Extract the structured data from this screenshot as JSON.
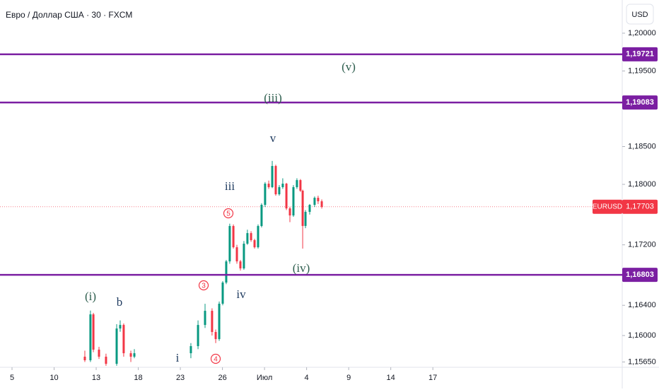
{
  "header": {
    "title": "Евро / Доллар США · 30 · FXCM",
    "currency": "USD"
  },
  "chart_data": {
    "type": "candlestick",
    "x": [
      5.19,
      5.59,
      5.8,
      6.2,
      6.7,
      7.46,
      7.71,
      7.96,
      8.47,
      8.72,
      12.75,
      13.26,
      13.76,
      14.26,
      14.52,
      14.77,
      15.02,
      15.27,
      15.52,
      15.78,
      16.03,
      16.28,
      16.53,
      16.78,
      17.04,
      17.29,
      17.54,
      17.79,
      18.04,
      18.3,
      18.55,
      18.8,
      19.05,
      19.3,
      19.56,
      19.81,
      20.06,
      20.31,
      20.56,
      20.72,
      20.92,
      21.22,
      21.57,
      21.82,
      22.08
    ],
    "open": [
      1.1572,
      1.15673,
      1.1628,
      1.15813,
      1.1572,
      1.15626,
      1.16093,
      1.1614,
      1.15766,
      1.1572,
      1.15766,
      1.1586,
      1.1614,
      1.16327,
      1.16047,
      1.15953,
      1.16421,
      1.16701,
      1.16981,
      1.17449,
      1.17168,
      1.16981,
      1.16888,
      1.17215,
      1.17355,
      1.17262,
      1.17168,
      1.17449,
      1.17729,
      1.18009,
      1.17963,
      1.18243,
      1.17869,
      1.17963,
      1.18009,
      1.17682,
      1.17589,
      1.17963,
      1.18056,
      1.17916,
      1.1745,
      1.17636,
      1.17729,
      1.17822,
      1.17776
    ],
    "high": [
      1.158,
      1.1633,
      1.163,
      1.1585,
      1.1576,
      1.1615,
      1.162,
      1.1616,
      1.158,
      1.1582,
      1.159,
      1.162,
      1.1642,
      1.1636,
      1.1608,
      1.1645,
      1.1672,
      1.17,
      1.1748,
      1.1747,
      1.172,
      1.17,
      1.1725,
      1.174,
      1.1738,
      1.1728,
      1.1747,
      1.1775,
      1.1803,
      1.1805,
      1.1831,
      1.1826,
      1.1799,
      1.1808,
      1.1802,
      1.177,
      1.1799,
      1.1808,
      1.1807,
      1.1793,
      1.1766,
      1.1774,
      1.1784,
      1.1785,
      1.178
    ],
    "low": [
      1.1565,
      1.1565,
      1.1578,
      1.1569,
      1.156,
      1.156,
      1.1605,
      1.1572,
      1.1565,
      1.157,
      1.157,
      1.1582,
      1.161,
      1.16,
      1.159,
      1.1593,
      1.164,
      1.1668,
      1.1695,
      1.1715,
      1.1695,
      1.1686,
      1.1687,
      1.172,
      1.1724,
      1.1715,
      1.1715,
      1.1743,
      1.177,
      1.1794,
      1.1795,
      1.1785,
      1.1785,
      1.1794,
      1.1766,
      1.175,
      1.1757,
      1.1794,
      1.179,
      1.1715,
      1.1742,
      1.176,
      1.177,
      1.1774,
      1.1768
    ],
    "close": [
      1.15673,
      1.1628,
      1.15813,
      1.1572,
      1.15626,
      1.16093,
      1.1614,
      1.15766,
      1.1572,
      1.15766,
      1.1586,
      1.1614,
      1.16327,
      1.16047,
      1.15953,
      1.16421,
      1.16701,
      1.16981,
      1.17449,
      1.17168,
      1.16981,
      1.16888,
      1.17215,
      1.17355,
      1.17262,
      1.17168,
      1.17449,
      1.17729,
      1.18009,
      1.17963,
      1.18243,
      1.17869,
      1.17963,
      1.18009,
      1.17682,
      1.17589,
      1.17963,
      1.18056,
      1.17916,
      1.1745,
      1.17636,
      1.17729,
      1.17822,
      1.17776,
      1.17703
    ],
    "colors": {
      "up": "#089981",
      "down": "#f23645"
    },
    "xlim": [
      -0.857,
      43.5
    ],
    "xticks": [
      {
        "value": 0,
        "label": "5"
      },
      {
        "value": 3,
        "label": "10"
      },
      {
        "value": 6,
        "label": "13"
      },
      {
        "value": 9,
        "label": "18"
      },
      {
        "value": 12,
        "label": "23"
      },
      {
        "value": 15,
        "label": "26"
      },
      {
        "value": 18,
        "label": "Июл"
      },
      {
        "value": 21,
        "label": "4"
      },
      {
        "value": 24,
        "label": "9"
      },
      {
        "value": 27,
        "label": "14"
      },
      {
        "value": 30,
        "label": "17"
      }
    ],
    "ylim": [
      1.1558,
      1.20439
    ],
    "yticks": [
      {
        "value": 1.2,
        "label": "1,20000"
      },
      {
        "value": 1.195,
        "label": "1,19500"
      },
      {
        "value": 1.185,
        "label": "1,18500"
      },
      {
        "value": 1.18,
        "label": "1,18000"
      },
      {
        "value": 1.172,
        "label": "1,17200"
      },
      {
        "value": 1.164,
        "label": "1,16400"
      },
      {
        "value": 1.16,
        "label": "1,16000"
      },
      {
        "value": 1.1565,
        "label": "1,15650"
      }
    ],
    "levels": [
      {
        "value": 1.19721,
        "label": "1,19721"
      },
      {
        "value": 1.19083,
        "label": "1,19083"
      },
      {
        "value": 1.16803,
        "label": "1,16803"
      }
    ],
    "level_color": "#7b1fa2",
    "last_price": {
      "symbol": "EURUSD",
      "value": 1.17703,
      "label": "1,17703"
    },
    "annotations": [
      "(v)",
      "(iii)",
      "v",
      "iii",
      "5",
      "3",
      "4",
      "(iv)",
      "iv",
      "(i)",
      "b",
      "i"
    ]
  }
}
